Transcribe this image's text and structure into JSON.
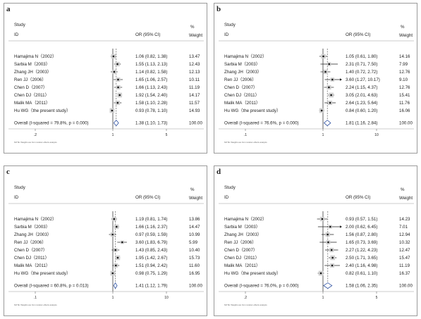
{
  "columns": {
    "study": "Study",
    "id": "ID",
    "effect": "OR (95% CI)",
    "pct": "%",
    "weight": "Weight"
  },
  "footnote": "NOTE: Weights are from random effects analysis",
  "overall_label_prefix": "Overall",
  "chart_data": [
    {
      "type": "forest",
      "panel": "a",
      "xtick_labels": [
        ".2",
        "1",
        "5"
      ],
      "studies": [
        {
          "label": "Hamajima N（2002）",
          "or": 1.06,
          "lo": 0.82,
          "hi": 1.38,
          "ci_text": "1.06 (0.82, 1.38)",
          "weight": "13.47"
        },
        {
          "label": "Sarbia M（2003）",
          "or": 1.55,
          "lo": 1.13,
          "hi": 2.13,
          "ci_text": "1.55 (1.13, 2.13)",
          "weight": "12.43"
        },
        {
          "label": "Zhang JH（2003）",
          "or": 1.14,
          "lo": 0.82,
          "hi": 1.58,
          "ci_text": "1.14 (0.82, 1.58)",
          "weight": "12.13"
        },
        {
          "label": "Ren JJ（2006）",
          "or": 1.65,
          "lo": 1.06,
          "hi": 2.57,
          "ci_text": "1.65 (1.06, 2.57)",
          "weight": "10.11"
        },
        {
          "label": "Chen D（2007）",
          "or": 1.66,
          "lo": 1.13,
          "hi": 2.43,
          "ci_text": "1.66 (1.13, 2.43)",
          "weight": "11.19"
        },
        {
          "label": "Chen DJ（2011）",
          "or": 1.92,
          "lo": 1.54,
          "hi": 2.4,
          "ci_text": "1.92 (1.54, 2.40)",
          "weight": "14.17"
        },
        {
          "label": "Malik MA（2011）",
          "or": 1.58,
          "lo": 1.1,
          "hi": 2.28,
          "ci_text": "1.58 (1.10, 2.28)",
          "weight": "11.57"
        },
        {
          "label": "Hu WG（the present study）",
          "or": 0.93,
          "lo": 0.78,
          "hi": 1.1,
          "ci_text": "0.93 (0.78, 1.10)",
          "weight": "14.93"
        }
      ],
      "overall": {
        "label": "Overall  (I-squared = 79.8%, p = 0.000)",
        "or": 1.38,
        "lo": 1.1,
        "hi": 1.73,
        "ci_text": "1.38 (1.10, 1.73)",
        "weight": "100.00"
      }
    },
    {
      "type": "forest",
      "panel": "b",
      "xtick_labels": [
        ".1",
        "1",
        "10"
      ],
      "studies": [
        {
          "label": "Hamajima N（2002）",
          "or": 1.05,
          "lo": 0.61,
          "hi": 1.8,
          "ci_text": "1.05 (0.61, 1.80)",
          "weight": "14.16"
        },
        {
          "label": "Sarbia M（2003）",
          "or": 2.31,
          "lo": 0.71,
          "hi": 7.5,
          "ci_text": "2.31 (0.71, 7.50)",
          "weight": "7.99"
        },
        {
          "label": "Zhang JH（2003）",
          "or": 1.4,
          "lo": 0.72,
          "hi": 2.72,
          "ci_text": "1.40 (0.72, 2.72)",
          "weight": "12.76"
        },
        {
          "label": "Ren JJ（2006）",
          "or": 3.6,
          "lo": 1.27,
          "hi": 10.17,
          "ci_text": "3.60 (1.27, 10.17)",
          "weight": "9.10"
        },
        {
          "label": "Chen D（2007）",
          "or": 2.24,
          "lo": 1.15,
          "hi": 4.37,
          "ci_text": "2.24 (1.15, 4.37)",
          "weight": "12.76"
        },
        {
          "label": "Chen DJ（2011）",
          "or": 3.05,
          "lo": 2.01,
          "hi": 4.63,
          "ci_text": "3.05 (2.01, 4.63)",
          "weight": "15.41"
        },
        {
          "label": "Malik MA（2011）",
          "or": 2.64,
          "lo": 1.23,
          "hi": 5.64,
          "ci_text": "2.64 (1.23, 5.64)",
          "weight": "11.76"
        },
        {
          "label": "Hu WG（the present study）",
          "or": 0.84,
          "lo": 0.6,
          "hi": 1.2,
          "ci_text": "0.84 (0.60, 1.20)",
          "weight": "16.06"
        }
      ],
      "overall": {
        "label": "Overall  (I-squared = 76.6%, p = 0.000)",
        "or": 1.81,
        "lo": 1.16,
        "hi": 2.84,
        "ci_text": "1.81 (1.16, 2.84)",
        "weight": "100.00"
      }
    },
    {
      "type": "forest",
      "panel": "c",
      "xtick_labels": [
        ".1",
        "1",
        "10"
      ],
      "studies": [
        {
          "label": "Hamajima N（2002）",
          "or": 1.19,
          "lo": 0.81,
          "hi": 1.74,
          "ci_text": "1.19 (0.81, 1.74)",
          "weight": "13.86"
        },
        {
          "label": "Sarbia M（2003）",
          "or": 1.66,
          "lo": 1.16,
          "hi": 2.37,
          "ci_text": "1.66 (1.16, 2.37)",
          "weight": "14.47"
        },
        {
          "label": "Zhang JH（2003）",
          "or": 0.97,
          "lo": 0.59,
          "hi": 1.59,
          "ci_text": "0.97 (0.59, 1.59)",
          "weight": "10.99"
        },
        {
          "label": "Ren JJ（2006）",
          "or": 3.6,
          "lo": 1.83,
          "hi": 6.79,
          "ci_text": "3.60 (1.83, 6.79)",
          "weight": "5.99"
        },
        {
          "label": "Chen D（2007）",
          "or": 1.43,
          "lo": 0.85,
          "hi": 2.43,
          "ci_text": "1.43 (0.85, 2.43)",
          "weight": "10.40"
        },
        {
          "label": "Chen DJ（2011）",
          "or": 1.95,
          "lo": 1.42,
          "hi": 2.67,
          "ci_text": "1.95 (1.42, 2.67)",
          "weight": "15.73"
        },
        {
          "label": "Malik MA（2011）",
          "or": 1.51,
          "lo": 0.94,
          "hi": 2.42,
          "ci_text": "1.51 (0.94, 2.42)",
          "weight": "11.60"
        },
        {
          "label": "Hu WG（the present study）",
          "or": 0.98,
          "lo": 0.75,
          "hi": 1.29,
          "ci_text": "0.98 (0.75, 1.29)",
          "weight": "16.95"
        }
      ],
      "overall": {
        "label": "Overall  (I-squared = 60.8%, p = 0.013)",
        "or": 1.41,
        "lo": 1.12,
        "hi": 1.79,
        "ci_text": "1.41 (1.12, 1.79)",
        "weight": "100.00"
      }
    },
    {
      "type": "forest",
      "panel": "d",
      "xtick_labels": [
        ".2",
        "1",
        "5"
      ],
      "studies": [
        {
          "label": "Hamajima N（2002）",
          "or": 0.93,
          "lo": 0.57,
          "hi": 1.51,
          "ci_text": "0.93 (0.57, 1.51)",
          "weight": "14.23"
        },
        {
          "label": "Sarbia M（2003）",
          "or": 2.0,
          "lo": 0.62,
          "hi": 6.45,
          "ci_text": "2.00 (0.62, 6.45)",
          "weight": "7.01"
        },
        {
          "label": "Zhang JH（2003）",
          "or": 1.56,
          "lo": 0.87,
          "hi": 2.8,
          "ci_text": "1.56 (0.87, 2.80)",
          "weight": "12.94"
        },
        {
          "label": "Ren JJ（2006）",
          "or": 1.65,
          "lo": 0.73,
          "hi": 3.69,
          "ci_text": "1.65 (0.73, 3.69)",
          "weight": "10.32"
        },
        {
          "label": "Chen D（2007）",
          "or": 2.27,
          "lo": 1.22,
          "hi": 4.23,
          "ci_text": "2.27 (1.22, 4.23)",
          "weight": "12.47"
        },
        {
          "label": "Chen DJ（2011）",
          "or": 2.5,
          "lo": 1.71,
          "hi": 3.65,
          "ci_text": "2.50 (1.71, 3.65)",
          "weight": "15.47"
        },
        {
          "label": "Malik MA（2011）",
          "or": 2.4,
          "lo": 1.16,
          "hi": 4.98,
          "ci_text": "2.40 (1.16, 4.98)",
          "weight": "11.19"
        },
        {
          "label": "Hu WG（the present study）",
          "or": 0.82,
          "lo": 0.61,
          "hi": 1.1,
          "ci_text": "0.82 (0.61, 1.10)",
          "weight": "16.37"
        }
      ],
      "overall": {
        "label": "Overall  (I-squared = 76.0%, p = 0.000)",
        "or": 1.58,
        "lo": 1.06,
        "hi": 2.35,
        "ci_text": "1.58 (1.06, 2.35)",
        "weight": "100.00"
      }
    }
  ]
}
